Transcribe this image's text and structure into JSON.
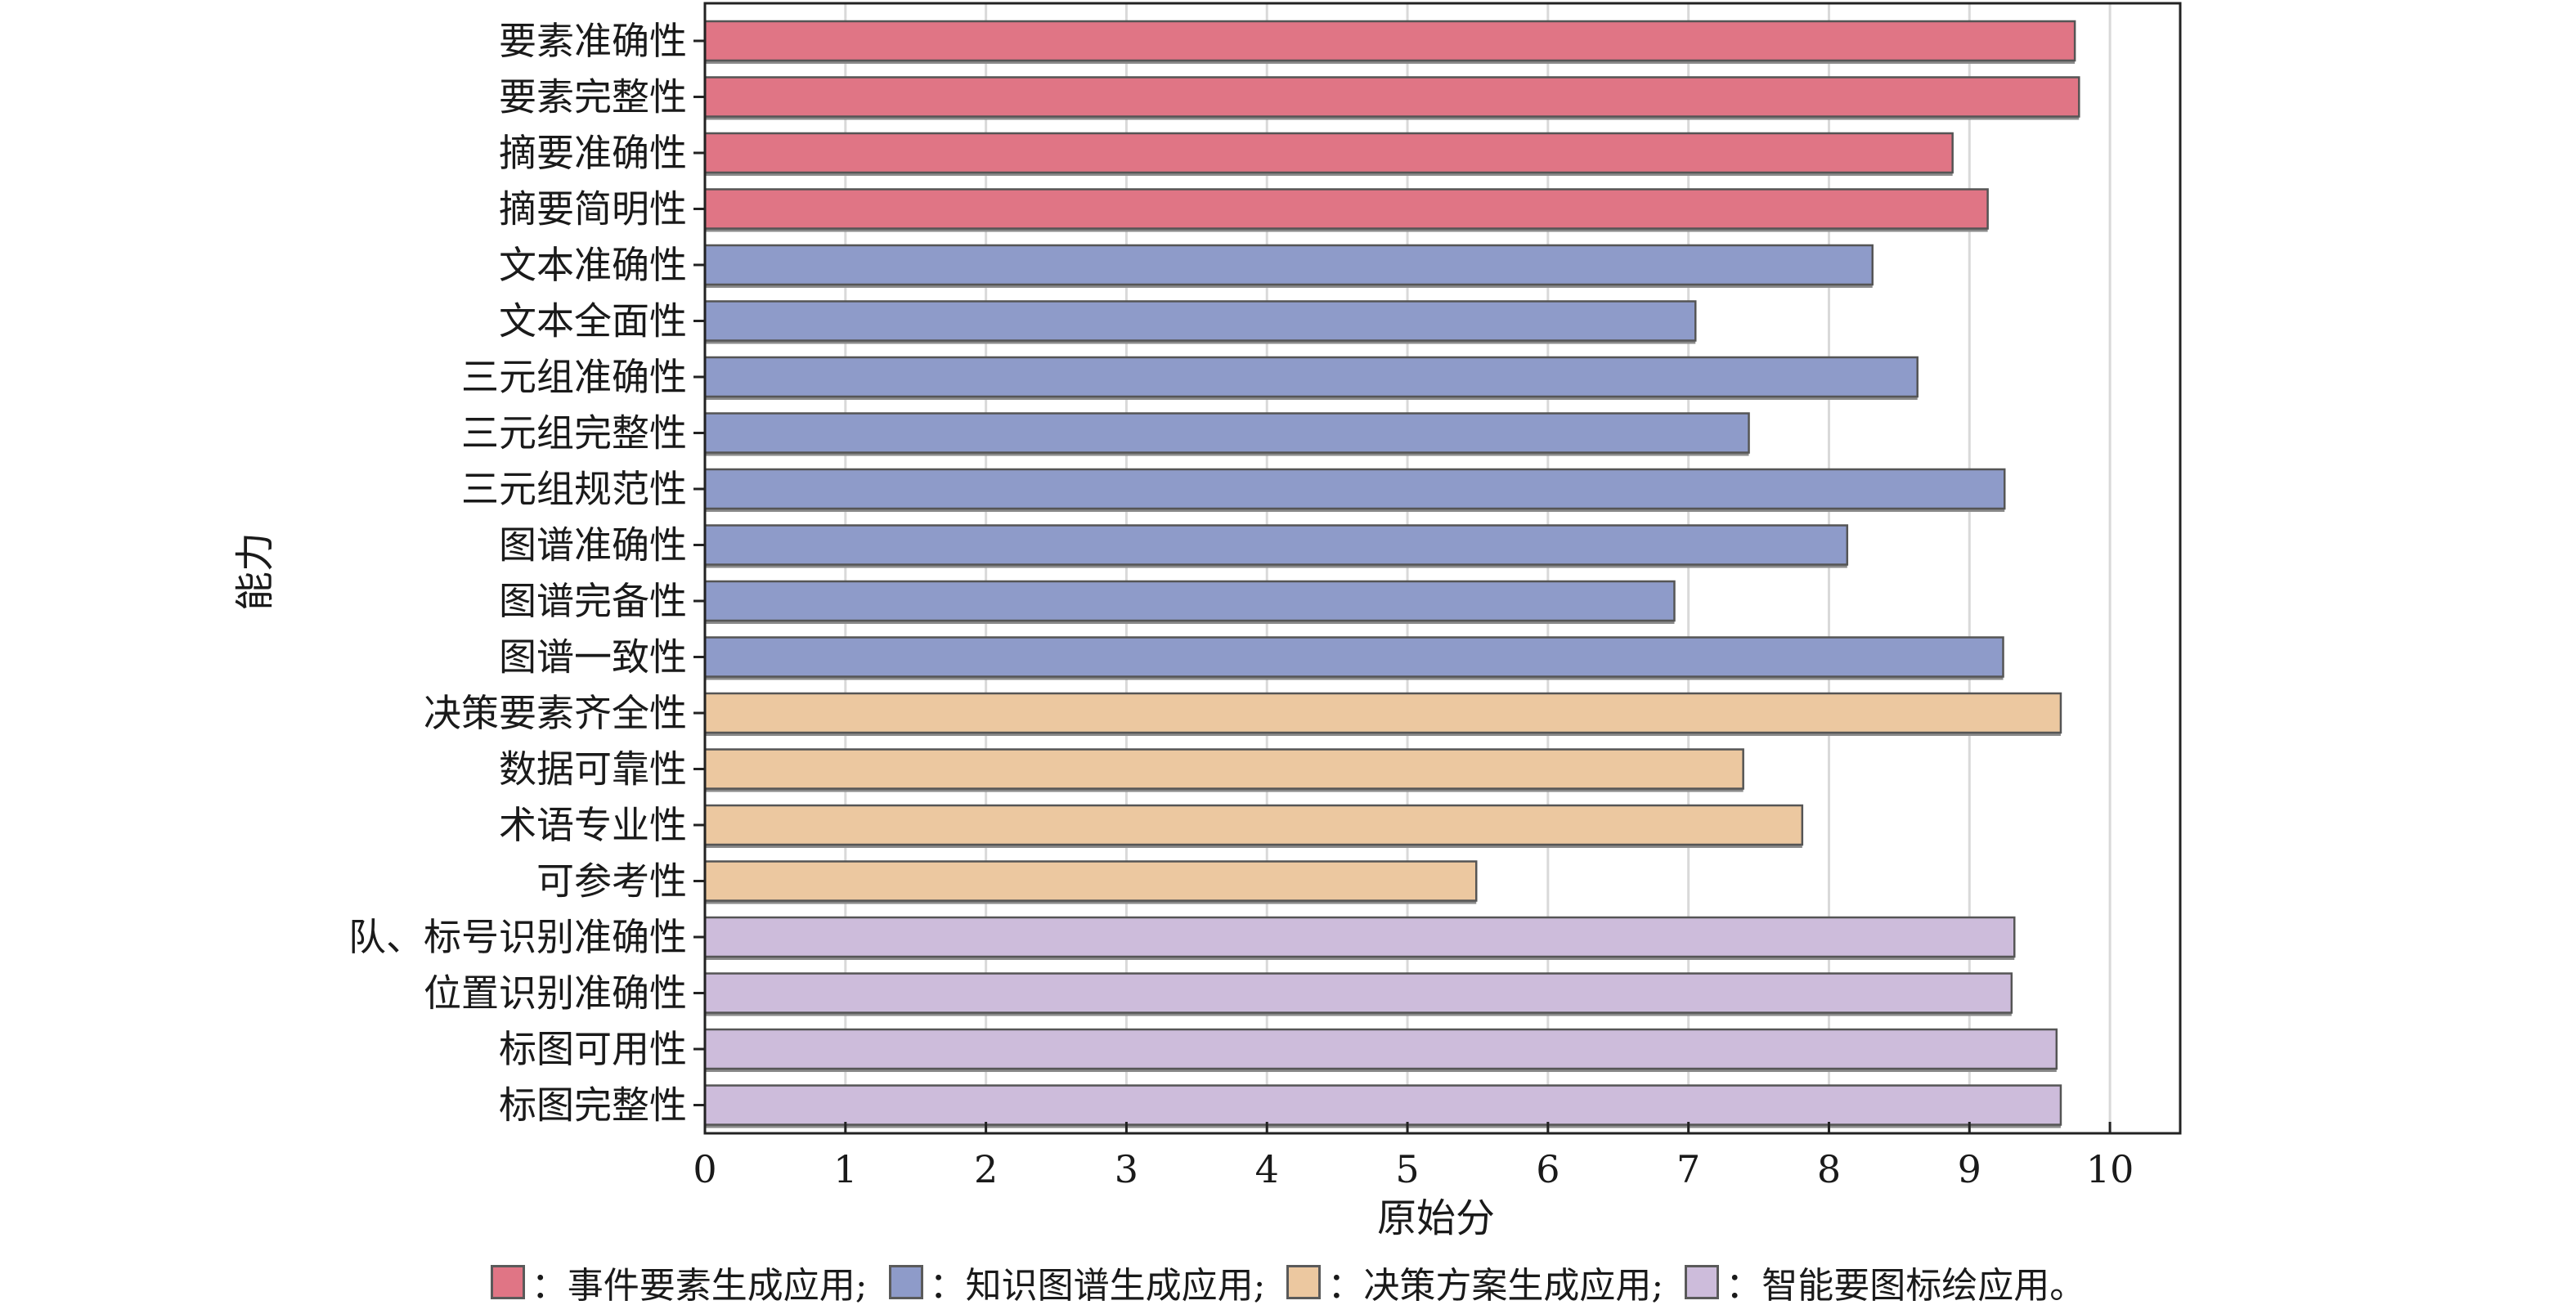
{
  "chart_data": {
    "type": "bar",
    "orientation": "horizontal",
    "categories": [
      "要素准确性",
      "要素完整性",
      "摘要准确性",
      "摘要简明性",
      "文本准确性",
      "文本全面性",
      "三元组准确性",
      "三元组完整性",
      "三元组规范性",
      "图谱准确性",
      "图谱完备性",
      "图谱一致性",
      "决策要素齐全性",
      "数据可靠性",
      "术语专业性",
      "可参考性",
      "队、标号识别准确性",
      "位置识别准确性",
      "标图可用性",
      "标图完整性"
    ],
    "values": [
      9.75,
      9.78,
      8.88,
      9.13,
      8.31,
      7.05,
      8.63,
      7.43,
      9.25,
      8.13,
      6.9,
      9.24,
      9.65,
      7.39,
      7.81,
      5.49,
      9.32,
      9.3,
      9.62,
      9.65
    ],
    "groups": [
      0,
      0,
      0,
      0,
      1,
      1,
      1,
      1,
      1,
      1,
      1,
      1,
      2,
      2,
      2,
      2,
      3,
      3,
      3,
      3
    ],
    "xlabel": "原始分",
    "ylabel": "能力",
    "xlim": [
      0,
      10.5
    ],
    "xticks": [
      0,
      1,
      2,
      3,
      4,
      5,
      6,
      7,
      8,
      9,
      10
    ],
    "grid": "vertical",
    "legend_position": "bottom"
  },
  "legend": {
    "items": [
      {
        "label": "：事件要素生成应用;",
        "color": "#e07585"
      },
      {
        "label": "：知识图谱生成应用;",
        "color": "#8e9bc9"
      },
      {
        "label": "：决策方案生成应用;",
        "color": "#ecc8a0"
      },
      {
        "label": "：智能要图标绘应用。",
        "color": "#cdbcdb"
      }
    ]
  }
}
